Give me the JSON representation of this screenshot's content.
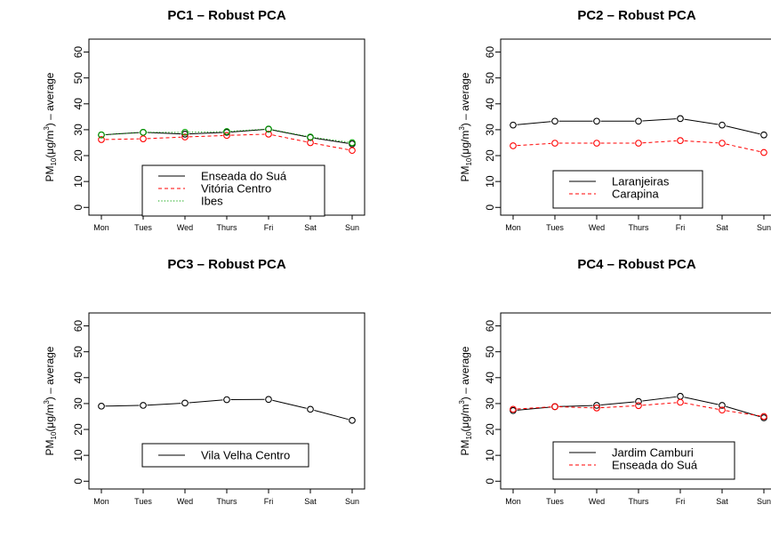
{
  "chart_data": [
    {
      "type": "line",
      "title": "PC1 – Robust PCA",
      "xlabel": "",
      "ylabel": {
        "main": "PM",
        "sub": "10",
        "unit_prefix": "(μg/m",
        "sup": "3",
        "unit_suffix": ") – average"
      },
      "categories": [
        "Mon",
        "Tues",
        "Wed",
        "Thurs",
        "Fri",
        "Sat",
        "Sun"
      ],
      "ylim": [
        -3,
        65
      ],
      "yticks": [
        0,
        10,
        20,
        30,
        40,
        50,
        60
      ],
      "grid": false,
      "legend_position": "bottom-right",
      "series": [
        {
          "name": "Enseada do Suá",
          "color": "#000000",
          "dash": "solid",
          "values": [
            28.0,
            29.0,
            28.3,
            29.0,
            30.2,
            27.0,
            24.5
          ]
        },
        {
          "name": "Vitória Centro",
          "color": "#ff0000",
          "dash": "dashed",
          "values": [
            26.2,
            26.5,
            27.2,
            27.8,
            28.3,
            25.0,
            22.0
          ]
        },
        {
          "name": "Ibes",
          "color": "#00a000",
          "dash": "dotted",
          "values": [
            28.0,
            29.0,
            29.0,
            29.3,
            30.3,
            27.2,
            25.0
          ]
        }
      ]
    },
    {
      "type": "line",
      "title": "PC2 – Robust PCA",
      "xlabel": "",
      "ylabel": {
        "main": "PM",
        "sub": "10",
        "unit_prefix": "(μg/m",
        "sup": "3",
        "unit_suffix": ") – average"
      },
      "categories": [
        "Mon",
        "Tues",
        "Wed",
        "Thurs",
        "Fri",
        "Sat",
        "Sun"
      ],
      "ylim": [
        -3,
        65
      ],
      "yticks": [
        0,
        10,
        20,
        30,
        40,
        50,
        60
      ],
      "grid": false,
      "legend_position": "bottom-right",
      "series": [
        {
          "name": "Laranjeiras",
          "color": "#000000",
          "dash": "solid",
          "values": [
            31.8,
            33.3,
            33.3,
            33.3,
            34.3,
            31.8,
            28.0
          ]
        },
        {
          "name": "Carapina",
          "color": "#ff0000",
          "dash": "dashed",
          "values": [
            23.8,
            24.8,
            24.8,
            24.8,
            25.8,
            24.8,
            21.2
          ]
        }
      ]
    },
    {
      "type": "line",
      "title": "PC3 – Robust PCA",
      "xlabel": "",
      "ylabel": {
        "main": "PM",
        "sub": "10",
        "unit_prefix": "(μg/m",
        "sup": "3",
        "unit_suffix": ") – average"
      },
      "categories": [
        "Mon",
        "Tues",
        "Wed",
        "Thurs",
        "Fri",
        "Sat",
        "Sun"
      ],
      "ylim": [
        -3,
        65
      ],
      "yticks": [
        0,
        10,
        20,
        30,
        40,
        50,
        60
      ],
      "grid": false,
      "legend_position": "bottom-right",
      "series": [
        {
          "name": "Vila Velha Centro",
          "color": "#000000",
          "dash": "solid",
          "values": [
            29.0,
            29.3,
            30.2,
            31.5,
            31.6,
            27.8,
            23.5
          ]
        }
      ]
    },
    {
      "type": "line",
      "title": "PC4 – Robust PCA",
      "xlabel": "",
      "ylabel": {
        "main": "PM",
        "sub": "10",
        "unit_prefix": "(μg/m",
        "sup": "3",
        "unit_suffix": ") – average"
      },
      "categories": [
        "Mon",
        "Tues",
        "Wed",
        "Thurs",
        "Fri",
        "Sat",
        "Sun"
      ],
      "ylim": [
        -3,
        65
      ],
      "yticks": [
        0,
        10,
        20,
        30,
        40,
        50,
        60
      ],
      "grid": false,
      "legend_position": "bottom-right",
      "series": [
        {
          "name": "Jardim Camburi",
          "color": "#000000",
          "dash": "solid",
          "values": [
            27.3,
            28.8,
            29.3,
            30.8,
            32.8,
            29.3,
            24.5
          ]
        },
        {
          "name": "Enseada do Suá",
          "color": "#ff0000",
          "dash": "dashed",
          "values": [
            27.8,
            28.8,
            28.3,
            29.2,
            30.5,
            27.5,
            25.0
          ]
        }
      ]
    }
  ]
}
